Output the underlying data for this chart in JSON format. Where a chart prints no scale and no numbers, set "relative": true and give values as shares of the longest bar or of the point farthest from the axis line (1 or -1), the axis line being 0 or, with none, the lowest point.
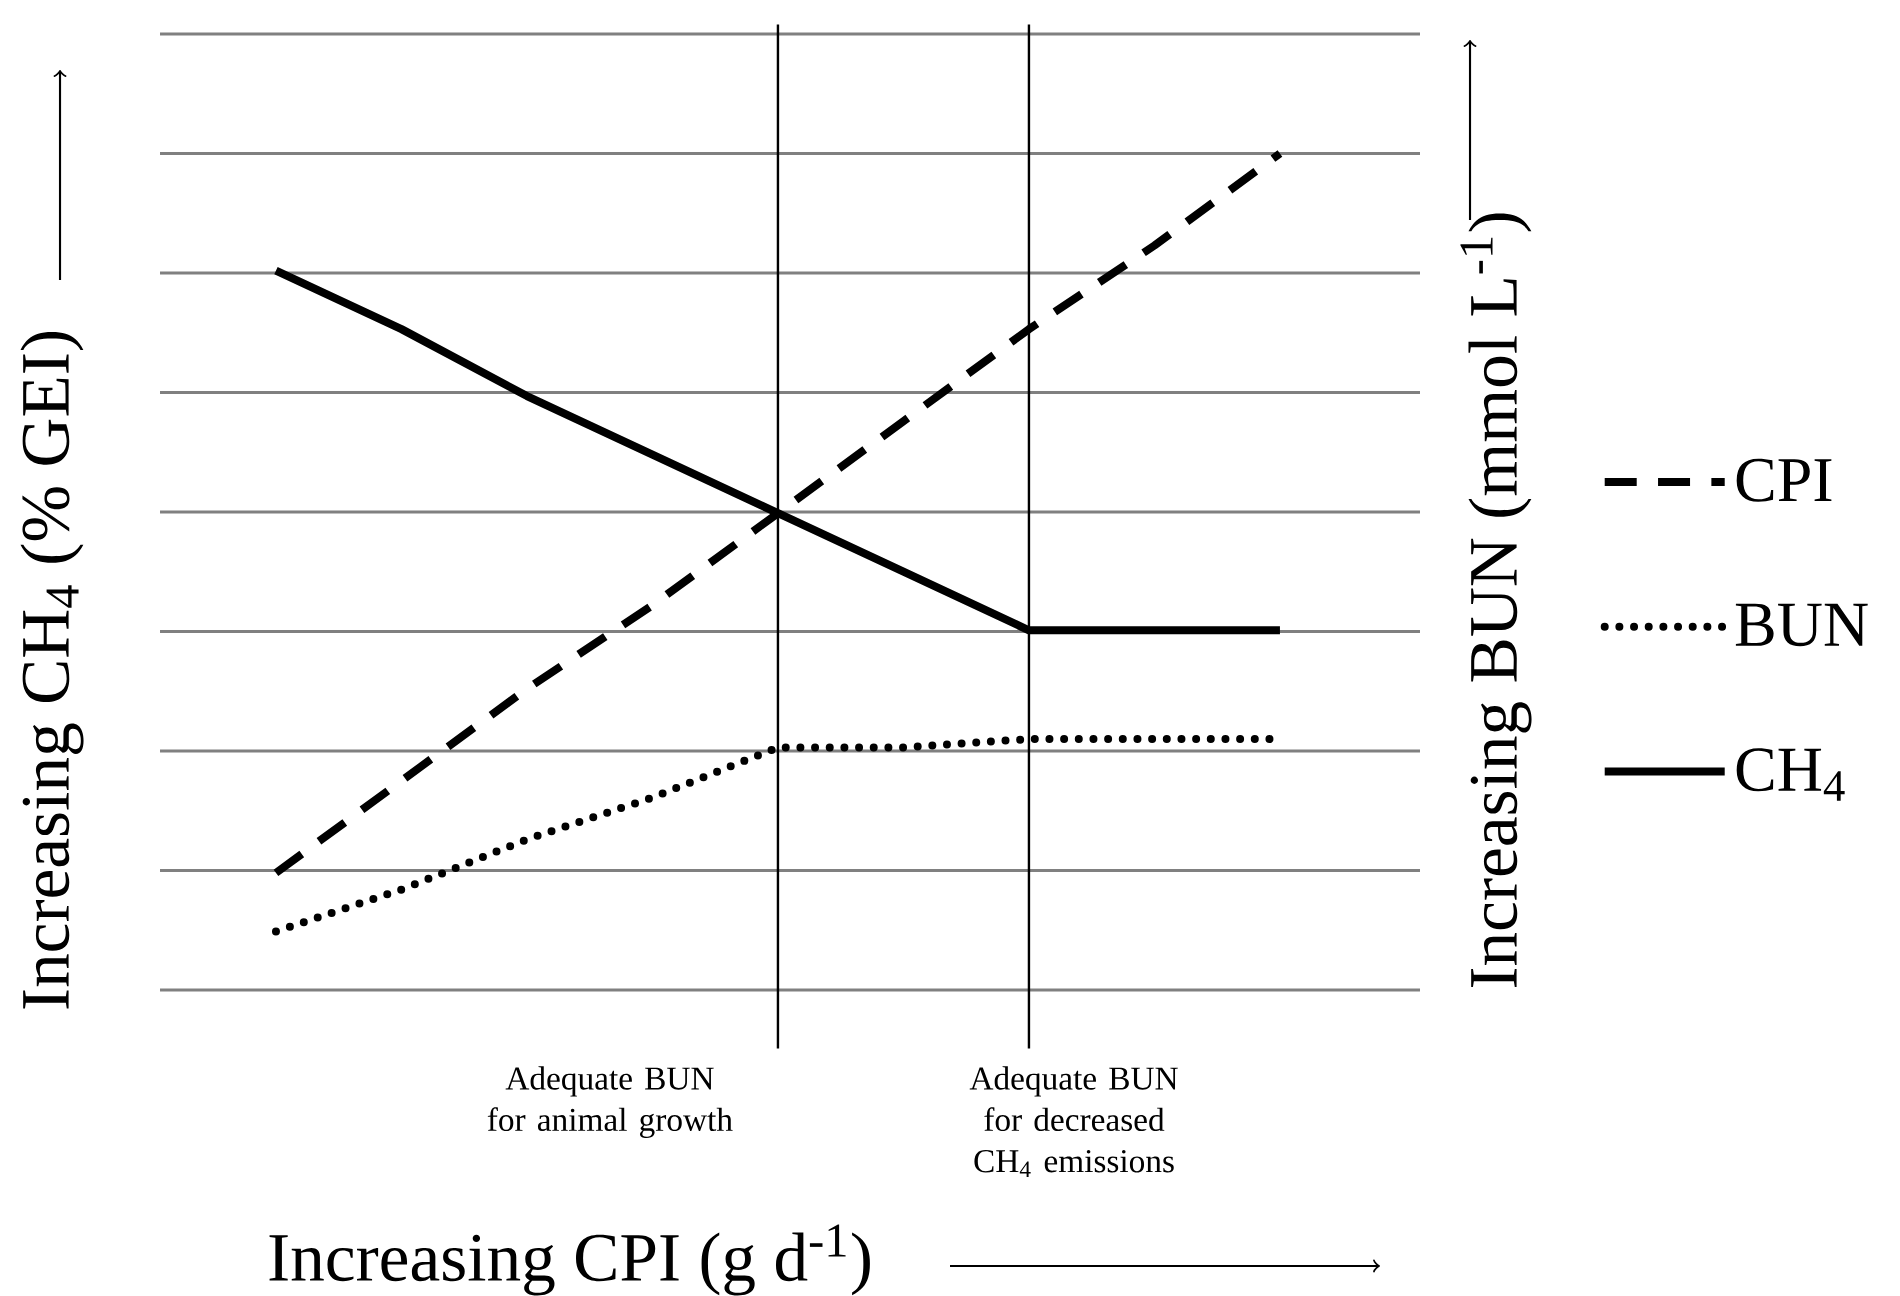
{
  "chart_data": {
    "type": "line",
    "relative": true,
    "xlabel": "Increasing CPI (g d$^{-1}$)",
    "ylabel": "Increasing CH$_{4}$ (% GEI)",
    "y2label": "Increasing BUN (mmol L$^{-1}$)",
    "categories": [
      null,
      null,
      null,
      null,
      null,
      null,
      null,
      null,
      null
    ],
    "grid": "y",
    "legend": "right",
    "series": [
      {
        "name": "CPI",
        "color": "#000000",
        "line_style": "dashed",
        "values": [
          0.14,
          0.25,
          0.36,
          0.46,
          0.57,
          0.68,
          0.79,
          0.89,
          1.0
        ]
      },
      {
        "name": "BUN",
        "color": "#000000",
        "line_style": "dotted",
        "values": [
          0.07,
          0.12,
          0.18,
          0.23,
          0.29,
          0.29,
          0.3,
          0.3,
          0.3
        ]
      },
      {
        "name": "CH$_{4}$",
        "color": "#000000",
        "line_style": "solid",
        "values": [
          0.86,
          0.79,
          0.71,
          0.64,
          0.57,
          0.5,
          0.43,
          0.43,
          0.43
        ]
      }
    ],
    "annotations": [
      "Adequate BUN for animal growth",
      "Adequate BUN for decreased CH$_{4}$ emissions"
    ]
  }
}
